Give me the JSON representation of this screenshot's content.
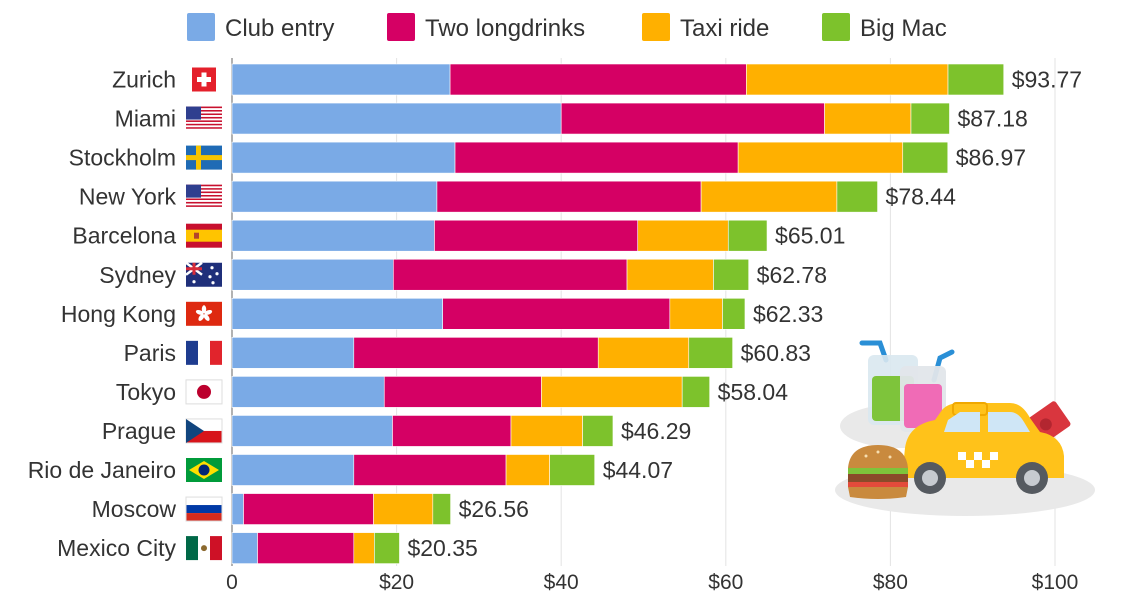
{
  "chart_data": {
    "type": "bar",
    "orientation": "horizontal",
    "stacked": true,
    "categories": [
      "Zurich",
      "Miami",
      "Stockholm",
      "New York",
      "Barcelona",
      "Sydney",
      "Hong Kong",
      "Paris",
      "Tokyo",
      "Prague",
      "Rio de Janeiro",
      "Moscow",
      "Mexico City"
    ],
    "series": [
      {
        "name": "Club entry",
        "color": "#7aaae6",
        "values": [
          26.5,
          40.0,
          27.1,
          24.9,
          24.6,
          19.6,
          25.6,
          14.8,
          18.5,
          19.5,
          14.8,
          1.4,
          3.1
        ]
      },
      {
        "name": "Two longdrinks",
        "color": "#d50064",
        "values": [
          36.0,
          32.0,
          34.4,
          32.1,
          24.7,
          28.4,
          27.6,
          29.7,
          19.1,
          14.4,
          18.5,
          15.8,
          11.7
        ]
      },
      {
        "name": "Taxi ride",
        "color": "#ffb000",
        "values": [
          24.5,
          10.5,
          20.0,
          16.5,
          11.0,
          10.5,
          6.4,
          11.0,
          17.1,
          8.7,
          5.3,
          7.2,
          2.5
        ]
      },
      {
        "name": "Big Mac",
        "color": "#7dc22c",
        "values": [
          6.77,
          4.68,
          5.47,
          4.94,
          4.71,
          4.28,
          2.73,
          5.33,
          3.34,
          3.69,
          5.47,
          2.16,
          3.05
        ]
      }
    ],
    "totals": [
      "$93.77",
      "$87.18",
      "$86.97",
      "$78.44",
      "$65.01",
      "$62.78",
      "$62.33",
      "$60.83",
      "$58.04",
      "$46.29",
      "$44.07",
      "$26.56",
      "$20.35"
    ],
    "flag_icons": [
      "flag-switzerland-icon",
      "flag-usa-icon",
      "flag-sweden-icon",
      "flag-usa-icon",
      "flag-spain-icon",
      "flag-australia-icon",
      "flag-hong-kong-icon",
      "flag-france-icon",
      "flag-japan-icon",
      "flag-czech-icon",
      "flag-brazil-icon",
      "flag-russia-icon",
      "flag-mexico-icon"
    ],
    "xlim": [
      0,
      100
    ],
    "xticks": [
      0,
      20,
      40,
      60,
      80,
      100
    ],
    "xtick_labels": [
      "0",
      "$20",
      "$40",
      "$60",
      "$80",
      "$100"
    ],
    "grid": true,
    "legend_position": "top"
  },
  "illustration": {
    "icons": [
      "drinks-icon",
      "taxi-icon",
      "burger-icon",
      "ticket-icon"
    ]
  }
}
